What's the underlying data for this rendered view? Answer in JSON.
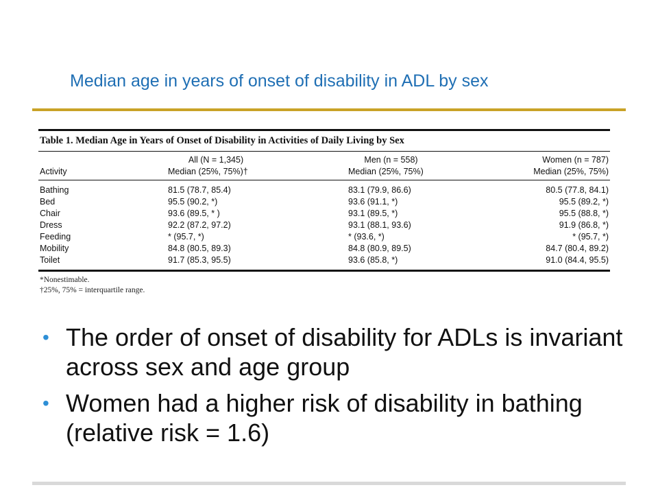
{
  "slide": {
    "title": "Median age in years of onset of disability in ADL by sex",
    "accent_color": "#c9a227",
    "title_color": "#1f6fb4"
  },
  "table": {
    "caption": "Table 1. Median Age in Years of Onset of Disability in Activities of Daily Living by Sex",
    "header": {
      "activity": "Activity",
      "all_top": "All (N = 1,345)",
      "all_bottom": "Median (25%, 75%)†",
      "men_top": "Men (n = 558)",
      "men_bottom": "Median (25%, 75%)",
      "women_top": "Women (n = 787)",
      "women_bottom": "Median (25%, 75%)"
    },
    "rows": [
      {
        "activity": "Bathing",
        "all": "81.5 (78.7, 85.4)",
        "men": "83.1 (79.9, 86.6)",
        "women": "80.5 (77.8, 84.1)"
      },
      {
        "activity": "Bed",
        "all": "95.5 (90.2, *)",
        "men": "93.6 (91.1, *)",
        "women": "95.5 (89.2, *)"
      },
      {
        "activity": "Chair",
        "all": "93.6 (89.5, * )",
        "men": "93.1 (89.5, *)",
        "women": "95.5 (88.8, *)"
      },
      {
        "activity": "Dress",
        "all": "92.2 (87.2, 97.2)",
        "men": "93.1 (88.1, 93.6)",
        "women": "91.9 (86.8, *)"
      },
      {
        "activity": "Feeding",
        "all": "* (95.7, *)",
        "men": "* (93.6, *)",
        "women": "* (95.7, *)"
      },
      {
        "activity": "Mobility",
        "all": "84.8 (80.5, 89.3)",
        "men": "84.8 (80.9, 89.5)",
        "women": "84.7 (80.4, 89.2)"
      },
      {
        "activity": "Toilet",
        "all": "91.7 (85.3, 95.5)",
        "men": "93.6 (85.8, *)",
        "women": "91.0 (84.4, 95.5)"
      }
    ],
    "footnotes": [
      "*Nonestimable.",
      "†25%, 75% = interquartile range."
    ]
  },
  "bullets": [
    "The order of onset of disability for ADLs is invariant across sex and age group",
    "Women had a higher risk of disability in bathing (relative risk = 1.6)"
  ],
  "bullet_color": "#2e8fd6"
}
